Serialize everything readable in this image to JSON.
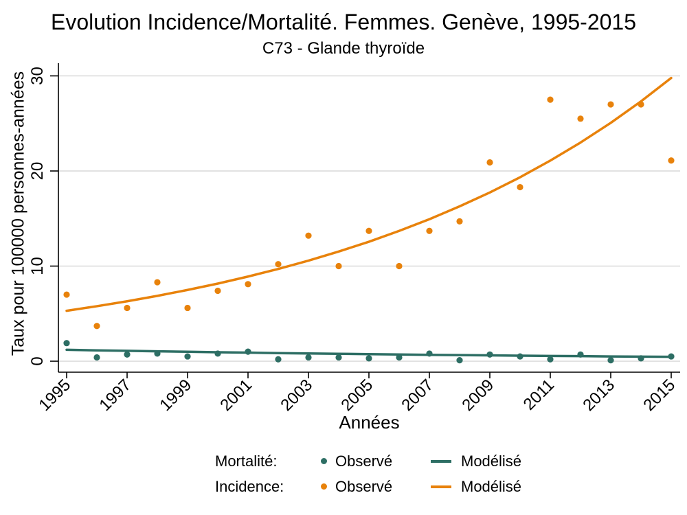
{
  "chart_data": {
    "type": "scatter",
    "title": "Evolution Incidence/Mortalité. Femmes. Genève, 1995-2015",
    "subtitle": "C73 - Glande thyroïde",
    "xlabel": "Années",
    "ylabel": "Taux pour 100000 personnes-années",
    "x": [
      1995,
      1996,
      1997,
      1998,
      1999,
      2000,
      2001,
      2002,
      2003,
      2004,
      2005,
      2006,
      2007,
      2008,
      2009,
      2010,
      2011,
      2012,
      2013,
      2014,
      2015
    ],
    "x_tick_labels": [
      "1995",
      "1997",
      "1999",
      "2001",
      "2003",
      "2005",
      "2007",
      "2009",
      "2011",
      "2013",
      "2015"
    ],
    "y_ticks": [
      0,
      10,
      20,
      30
    ],
    "ylim": [
      0,
      30
    ],
    "grid": true,
    "legend_position": "bottom",
    "series": [
      {
        "id": "mortalite-observe",
        "group": "Mortalité",
        "label": "Observé",
        "type": "scatter",
        "color": "#2d6e64",
        "values": [
          1.9,
          0.4,
          0.7,
          0.8,
          0.5,
          0.8,
          1.0,
          0.2,
          0.4,
          0.4,
          0.3,
          0.4,
          0.8,
          0.1,
          0.7,
          0.5,
          0.2,
          0.7,
          0.1,
          0.3,
          0.5
        ]
      },
      {
        "id": "mortalite-modelise",
        "group": "Mortalité",
        "label": "Modélisé",
        "type": "line",
        "color": "#2d6e64",
        "values": [
          1.2,
          1.14,
          1.09,
          1.04,
          0.99,
          0.94,
          0.9,
          0.85,
          0.81,
          0.78,
          0.74,
          0.7,
          0.67,
          0.64,
          0.61,
          0.58,
          0.55,
          0.53,
          0.5,
          0.48,
          0.46
        ]
      },
      {
        "id": "incidence-observe",
        "group": "Incidence",
        "label": "Observé",
        "type": "scatter",
        "color": "#e8820b",
        "values": [
          7.0,
          3.7,
          5.6,
          8.3,
          5.6,
          7.4,
          8.1,
          10.2,
          13.2,
          10.0,
          13.7,
          10.0,
          13.7,
          14.7,
          20.9,
          18.3,
          27.5,
          25.5,
          27.0,
          27.0,
          21.1
        ]
      },
      {
        "id": "incidence-modelise",
        "group": "Incidence",
        "label": "Modélisé",
        "type": "line",
        "color": "#e8820b",
        "values": [
          5.3,
          5.78,
          6.3,
          6.87,
          7.49,
          8.16,
          8.9,
          9.7,
          10.57,
          11.53,
          12.56,
          13.7,
          14.93,
          16.28,
          17.74,
          19.34,
          21.09,
          22.99,
          25.06,
          27.32,
          29.78
        ]
      }
    ],
    "legend": {
      "rows": [
        {
          "group": "Mortalité:",
          "observed": "Observé",
          "modeled": "Modélisé",
          "color": "#2d6e64"
        },
        {
          "group": "Incidence:",
          "observed": "Observé",
          "modeled": "Modélisé",
          "color": "#e8820b"
        }
      ]
    },
    "colors": {
      "mortality": "#2d6e64",
      "incidence": "#e8820b",
      "gridline": "#d9d9d9",
      "axis": "#000000",
      "background": "#ffffff"
    }
  }
}
